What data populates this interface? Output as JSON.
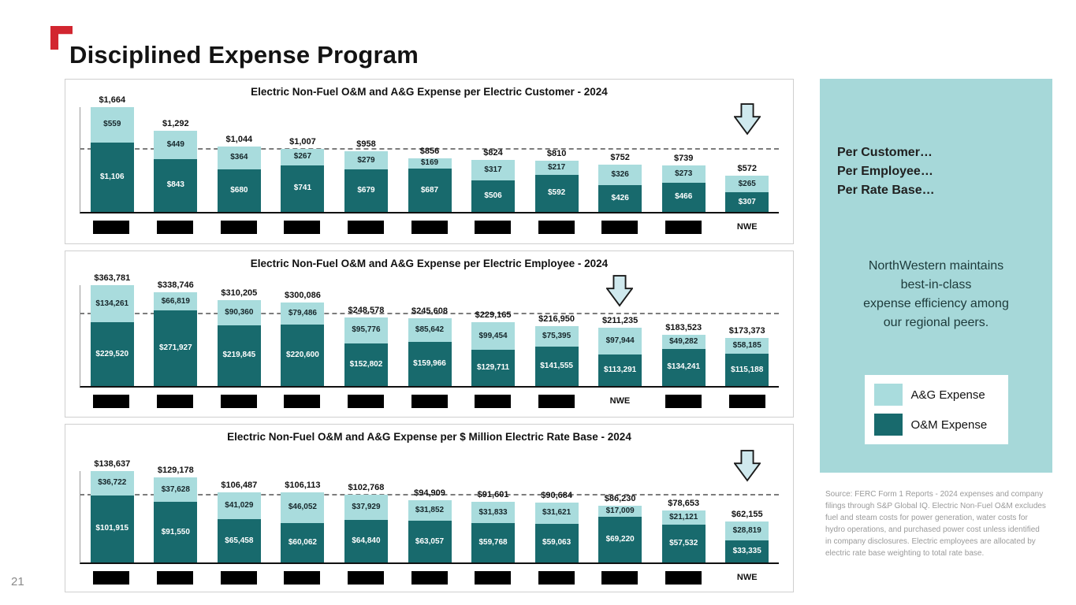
{
  "slide": {
    "title": "Disciplined Expense Program",
    "page_number": "21"
  },
  "colors": {
    "om": "#186a6d",
    "ag": "#a9dcdd",
    "panel": "#a6d8d9",
    "flag": "#d22630",
    "redaction": "#000000"
  },
  "sidebar": {
    "headline_lines": [
      "Per Customer…",
      "Per Employee…",
      "Per Rate Base…"
    ],
    "summary_lines": [
      "NorthWestern maintains",
      "best-in-class",
      "expense efficiency among",
      "our regional peers."
    ],
    "legend": [
      {
        "label": "A&G Expense",
        "color": "#a9dcdd"
      },
      {
        "label": "O&M Expense",
        "color": "#186a6d"
      }
    ],
    "source_note": "Source:  FERC Form 1 Reports - 2024 expenses and company filings through S&P Global IQ. Electric Non-Fuel O&M excludes fuel and steam costs for power generation, water costs for hydro operations, and purchased power cost unless identified in company disclosures. Electric employees are allocated by electric rate base weighting to total rate base."
  },
  "chart_data": [
    {
      "type": "bar",
      "stacked": true,
      "title": "Electric Non-Fuel O&M and A&G Expense per Electric Customer - 2024",
      "categories": [
        "",
        "",
        "",
        "",
        "",
        "",
        "",
        "",
        "",
        "",
        "NWE"
      ],
      "nwe_index": 10,
      "arrow_index": 10,
      "series": [
        {
          "name": "A&G Expense",
          "values": [
            559,
            449,
            364,
            267,
            279,
            169,
            317,
            217,
            326,
            273,
            265
          ]
        },
        {
          "name": "O&M Expense",
          "values": [
            1106,
            843,
            680,
            741,
            679,
            687,
            506,
            592,
            426,
            466,
            307
          ]
        }
      ],
      "totals": [
        1664,
        1292,
        1044,
        1007,
        958,
        856,
        824,
        810,
        752,
        739,
        572
      ],
      "avg_line": 995,
      "ylim": [
        0,
        1664
      ],
      "legend_position": "none",
      "grid": false
    },
    {
      "type": "bar",
      "stacked": true,
      "title": "Electric Non-Fuel O&M and A&G Expense per Electric Employee - 2024",
      "categories": [
        "",
        "",
        "",
        "",
        "",
        "",
        "",
        "",
        "NWE",
        "",
        ""
      ],
      "nwe_index": 8,
      "arrow_index": 8,
      "series": [
        {
          "name": "A&G Expense",
          "values": [
            134261,
            66819,
            90360,
            79486,
            95776,
            85642,
            99454,
            75395,
            97944,
            49282,
            58185
          ]
        },
        {
          "name": "O&M Expense",
          "values": [
            229520,
            271927,
            219845,
            220600,
            152802,
            159966,
            129711,
            141555,
            113291,
            134241,
            115188
          ]
        }
      ],
      "totals": [
        363781,
        338746,
        310205,
        300086,
        248578,
        245608,
        229165,
        216950,
        211235,
        183523,
        173373
      ],
      "avg_line": 261001,
      "ylim": [
        0,
        363781
      ],
      "legend_position": "none",
      "grid": false
    },
    {
      "type": "bar",
      "stacked": true,
      "title": "Electric Non-Fuel O&M and A&G Expense per $ Million Electric Rate Base - 2024",
      "categories": [
        "",
        "",
        "",
        "",
        "",
        "",
        "",
        "",
        "",
        "",
        "NWE"
      ],
      "nwe_index": 10,
      "arrow_index": 10,
      "series": [
        {
          "name": "A&G Expense",
          "values": [
            36722,
            37628,
            41029,
            46052,
            37929,
            31852,
            31833,
            31621,
            17009,
            21121,
            28819
          ]
        },
        {
          "name": "O&M Expense",
          "values": [
            101915,
            91550,
            65458,
            60062,
            64840,
            63057,
            59768,
            59063,
            69220,
            57532,
            33335
          ]
        }
      ],
      "totals": [
        138637,
        129178,
        106487,
        106113,
        102768,
        94909,
        91601,
        90684,
        86230,
        78653,
        62155
      ],
      "avg_line": 102526,
      "ylim": [
        0,
        138637
      ],
      "legend_position": "none",
      "grid": false
    }
  ]
}
